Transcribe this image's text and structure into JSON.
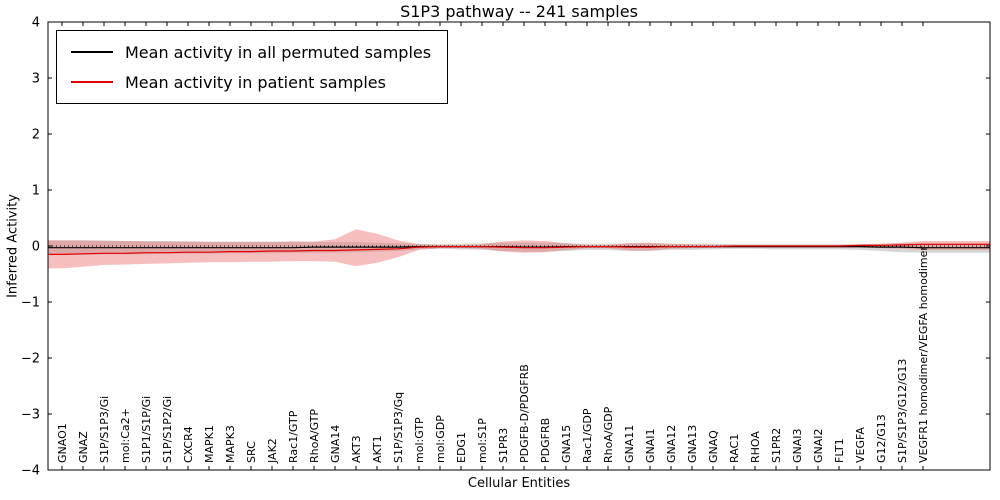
{
  "chart_data": {
    "type": "line",
    "title": "S1P3 pathway -- 241 samples",
    "xlabel": "Cellular Entities",
    "ylabel": "Inferred Activity",
    "ylim": [
      -4,
      4
    ],
    "ytick_step": 1,
    "grid": false,
    "zero_line": true,
    "legend_position": "upper left",
    "categories": [
      "GNAO1",
      "GNAZ",
      "S1P/S1P3/Gi",
      "mol:Ca2+",
      "S1P1/S1P/Gi",
      "S1P/S1P2/Gi",
      "CXCR4",
      "MAPK1",
      "MAPK3",
      "SRC",
      "JAK2",
      "Rac1/GTP",
      "RhoA/GTP",
      "GNA14",
      "AKT3",
      "AKT1",
      "S1P/S1P3/Gq",
      "mol:GTP",
      "mol:GDP",
      "EDG1",
      "mol:S1P",
      "S1PR3",
      "PDGFB-D/PDGFRB",
      "PDGFRB",
      "GNA15",
      "Rac1/GDP",
      "RhoA/GDP",
      "GNA11",
      "GNAI1",
      "GNA12",
      "GNA13",
      "GNAQ",
      "RAC1",
      "RHOA",
      "S1PR2",
      "GNAI3",
      "GNAI2",
      "FLT1",
      "VEGFA",
      "G12/G13",
      "S1P/S1P3/G12/G13",
      "VEGFR1 homodimer/VEGFA homodimer"
    ],
    "series": [
      {
        "name": "Mean activity in all permuted samples",
        "color": "#000000",
        "values": [
          -0.03,
          -0.03,
          -0.03,
          -0.03,
          -0.03,
          -0.03,
          -0.03,
          -0.03,
          -0.03,
          -0.03,
          -0.03,
          -0.03,
          -0.02,
          -0.02,
          -0.02,
          -0.02,
          -0.02,
          -0.01,
          -0.01,
          -0.01,
          -0.01,
          -0.01,
          -0.02,
          -0.02,
          -0.01,
          -0.01,
          -0.01,
          -0.01,
          -0.01,
          -0.01,
          -0.01,
          -0.01,
          -0.01,
          -0.01,
          -0.01,
          -0.01,
          -0.01,
          -0.01,
          -0.01,
          -0.02,
          -0.02,
          -0.03
        ],
        "band": {
          "name": "permuted-band",
          "color": "#999999",
          "opacity": 0.4,
          "upper": [
            0.1,
            0.1,
            0.1,
            0.09,
            0.09,
            0.09,
            0.08,
            0.08,
            0.08,
            0.08,
            0.08,
            0.08,
            0.07,
            0.07,
            0.07,
            0.06,
            0.05,
            0.04,
            0.03,
            0.04,
            0.05,
            0.06,
            0.06,
            0.06,
            0.05,
            0.04,
            0.04,
            0.05,
            0.05,
            0.04,
            0.04,
            0.04,
            0.03,
            0.03,
            0.03,
            0.03,
            0.03,
            0.03,
            0.03,
            0.04,
            0.05,
            0.05
          ],
          "lower": [
            -0.16,
            -0.16,
            -0.15,
            -0.15,
            -0.15,
            -0.14,
            -0.14,
            -0.14,
            -0.13,
            -0.13,
            -0.13,
            -0.12,
            -0.12,
            -0.12,
            -0.11,
            -0.1,
            -0.09,
            -0.06,
            -0.05,
            -0.06,
            -0.07,
            -0.09,
            -0.1,
            -0.1,
            -0.09,
            -0.07,
            -0.07,
            -0.09,
            -0.09,
            -0.07,
            -0.07,
            -0.06,
            -0.05,
            -0.05,
            -0.06,
            -0.06,
            -0.06,
            -0.06,
            -0.07,
            -0.09,
            -0.11,
            -0.12
          ]
        }
      },
      {
        "name": "Mean activity in patient samples",
        "color": "#e00000",
        "values": [
          -0.15,
          -0.14,
          -0.13,
          -0.13,
          -0.12,
          -0.12,
          -0.11,
          -0.11,
          -0.1,
          -0.1,
          -0.09,
          -0.09,
          -0.08,
          -0.08,
          -0.07,
          -0.06,
          -0.05,
          -0.02,
          -0.01,
          -0.01,
          -0.01,
          -0.02,
          -0.03,
          -0.03,
          -0.02,
          -0.01,
          -0.01,
          -0.02,
          -0.02,
          -0.01,
          -0.01,
          -0.01,
          0,
          0,
          0,
          0,
          0,
          0,
          0.01,
          0.01,
          0.02,
          0.03
        ],
        "band": {
          "name": "patient-band",
          "color": "#e87272",
          "opacity": 0.45,
          "upper": [
            0.1,
            0.1,
            0.09,
            0.09,
            0.08,
            0.08,
            0.08,
            0.07,
            0.07,
            0.07,
            0.07,
            0.08,
            0.08,
            0.12,
            0.3,
            0.22,
            0.1,
            0.03,
            0.02,
            0.02,
            0.03,
            0.08,
            0.1,
            0.09,
            0.05,
            0.02,
            0.02,
            0.05,
            0.06,
            0.04,
            0.03,
            0.02,
            0.02,
            0.02,
            0.02,
            0.02,
            0.02,
            0.02,
            0.03,
            0.04,
            0.06,
            0.09
          ],
          "lower": [
            -0.4,
            -0.37,
            -0.34,
            -0.33,
            -0.32,
            -0.31,
            -0.3,
            -0.29,
            -0.29,
            -0.28,
            -0.28,
            -0.27,
            -0.27,
            -0.28,
            -0.36,
            -0.3,
            -0.2,
            -0.07,
            -0.04,
            -0.04,
            -0.05,
            -0.1,
            -0.12,
            -0.11,
            -0.07,
            -0.04,
            -0.04,
            -0.08,
            -0.08,
            -0.05,
            -0.04,
            -0.03,
            -0.03,
            -0.03,
            -0.03,
            -0.03,
            -0.03,
            -0.03,
            -0.03,
            -0.04,
            -0.05,
            -0.07
          ]
        }
      }
    ]
  }
}
